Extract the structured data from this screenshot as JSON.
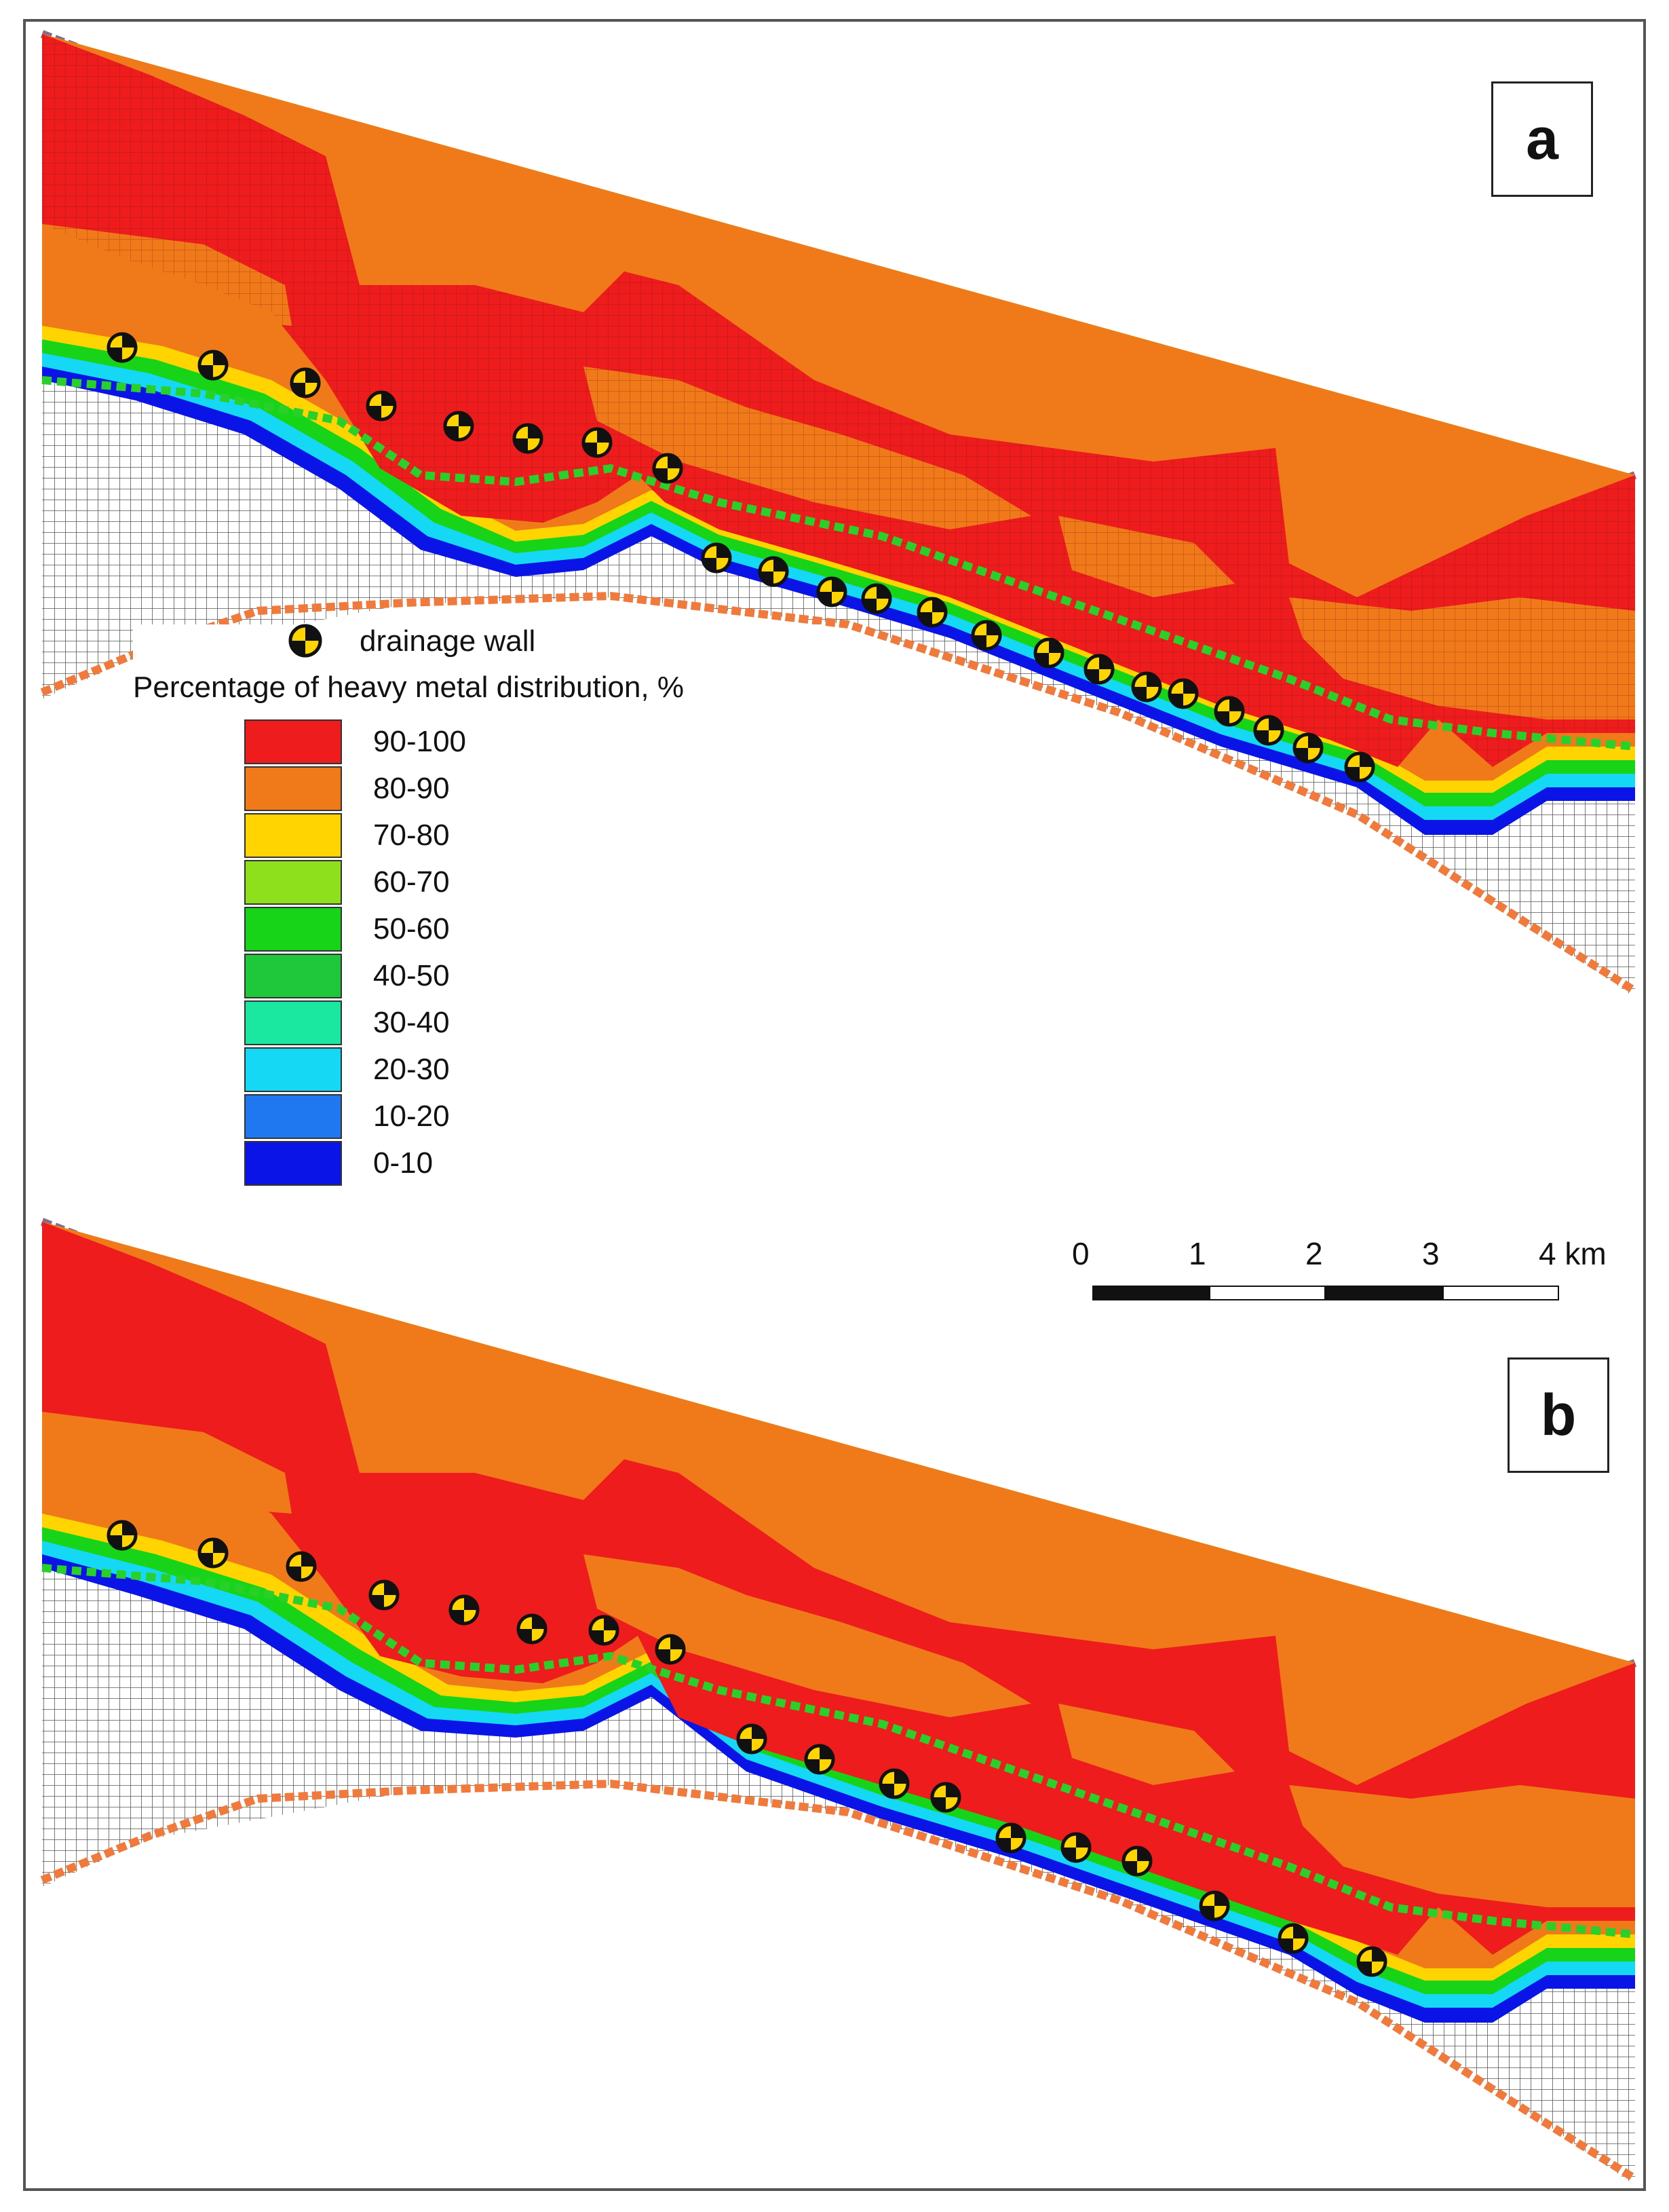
{
  "panels": [
    {
      "label": "a"
    },
    {
      "label": "b"
    }
  ],
  "legend": {
    "wall_label": "drainage wall",
    "title": "Percentage of heavy metal distribution, %",
    "classes": [
      {
        "label": "90-100",
        "color": "#ee1c1c"
      },
      {
        "label": "80-90",
        "color": "#f07a1a"
      },
      {
        "label": "70-80",
        "color": "#ffd400"
      },
      {
        "label": "60-70",
        "color": "#8ee01c"
      },
      {
        "label": "50-60",
        "color": "#18d418"
      },
      {
        "label": "40-50",
        "color": "#1ec83a"
      },
      {
        "label": "30-40",
        "color": "#1ae8a0"
      },
      {
        "label": "20-30",
        "color": "#14d8f4"
      },
      {
        "label": "10-20",
        "color": "#1f78f0"
      },
      {
        "label": "0-10",
        "color": "#0a14e6"
      }
    ]
  },
  "scale": {
    "ticks": [
      "0",
      "1",
      "2",
      "3",
      "4 km"
    ],
    "colors": [
      "#111111",
      "#ffffff",
      "#111111",
      "#ffffff"
    ]
  },
  "colors": {
    "grid_cell": "#ffffff",
    "grid_line": "#555555",
    "boundary": "#f07a3c",
    "wall_ring": "#111111",
    "wall_fill": "#ffd400",
    "drain_line": "#2ad02a"
  }
}
